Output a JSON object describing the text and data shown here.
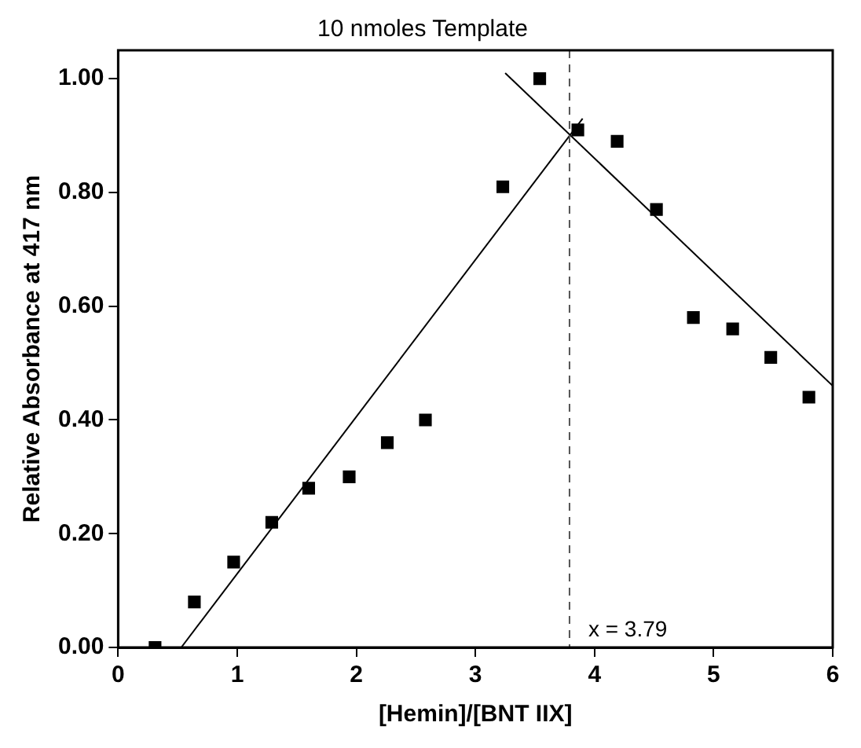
{
  "chart_data": {
    "type": "scatter",
    "title": "10 nmoles Template",
    "xlabel": "[Hemin]/[BNT IIX]",
    "ylabel": "Relative Absorbance at 417 nm",
    "xlim": [
      0,
      6
    ],
    "ylim": [
      0,
      1.05
    ],
    "xticks": [
      0,
      1,
      2,
      3,
      4,
      5,
      6
    ],
    "yticks": [
      {
        "value": 0,
        "label": "0.00"
      },
      {
        "value": 0.2,
        "label": "0.20"
      },
      {
        "value": 0.4,
        "label": "0.40"
      },
      {
        "value": 0.6,
        "label": "0.60"
      },
      {
        "value": 0.8,
        "label": "0.80"
      },
      {
        "value": 1.0,
        "label": "1.00"
      }
    ],
    "grid": false,
    "legend": false,
    "series": [
      {
        "marker": "square",
        "color": "#000000",
        "x": [
          0.31,
          0.64,
          0.97,
          1.29,
          1.6,
          1.94,
          2.26,
          2.58,
          3.23,
          3.54,
          3.86,
          4.19,
          4.52,
          4.83,
          5.16,
          5.48,
          5.8
        ],
        "values": [
          0.0,
          0.08,
          0.15,
          0.22,
          0.28,
          0.3,
          0.36,
          0.4,
          0.81,
          1.0,
          0.91,
          0.89,
          0.77,
          0.58,
          0.56,
          0.51,
          0.44
        ]
      },
      {
        "type": "line",
        "marker": "none",
        "color": "#000000",
        "x": [
          0.53,
          3.9
        ],
        "values": [
          0.0,
          0.93
        ]
      },
      {
        "type": "line",
        "marker": "none",
        "color": "#000000",
        "x": [
          3.25,
          6.0
        ],
        "values": [
          1.01,
          0.46
        ]
      }
    ],
    "ref_lines": [
      {
        "axis": "x",
        "value": 3.79,
        "label": "x = 3.79",
        "color": "#555555",
        "line_style": "dashed"
      }
    ]
  }
}
